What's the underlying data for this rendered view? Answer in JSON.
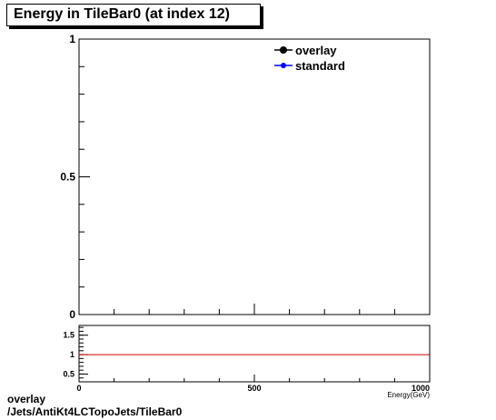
{
  "title": "Energy in TileBar0 (at index 12)",
  "footer": {
    "line1": "overlay",
    "line2": "/Jets/AntiKt4LCTopoJets/TileBar0"
  },
  "colors": {
    "overlay": "#000000",
    "standard": "#0000ff",
    "ratio_line": "#cc0000"
  },
  "chart_data": [
    {
      "type": "line",
      "title": "Energy in TileBar0 (at index 12)",
      "xlim": [
        0,
        1000
      ],
      "ylim": [
        0,
        1
      ],
      "x_ticks": [
        0,
        500,
        1000
      ],
      "y_ticks": [
        {
          "value": 0,
          "label": "0"
        },
        {
          "value": 0.5,
          "label": "0.5"
        },
        {
          "value": 1,
          "label": "1"
        }
      ],
      "legend_position": "top-right",
      "series": [
        {
          "name": "overlay",
          "color": "#000000",
          "points": []
        },
        {
          "name": "standard",
          "color": "#0000ff",
          "points": []
        }
      ]
    },
    {
      "type": "line",
      "xlim": [
        0,
        1000
      ],
      "ylim": [
        0.3,
        1.75
      ],
      "xlabel": "Energy(GeV)",
      "x_ticks": [
        {
          "value": 0,
          "label": "0"
        },
        {
          "value": 500,
          "label": "500"
        },
        {
          "value": 1000,
          "label": "1000"
        }
      ],
      "y_ticks": [
        {
          "value": 0.5,
          "label": "0.5"
        },
        {
          "value": 1,
          "label": "1"
        },
        {
          "value": 1.5,
          "label": "1.5"
        }
      ],
      "reference_line": 1
    }
  ]
}
